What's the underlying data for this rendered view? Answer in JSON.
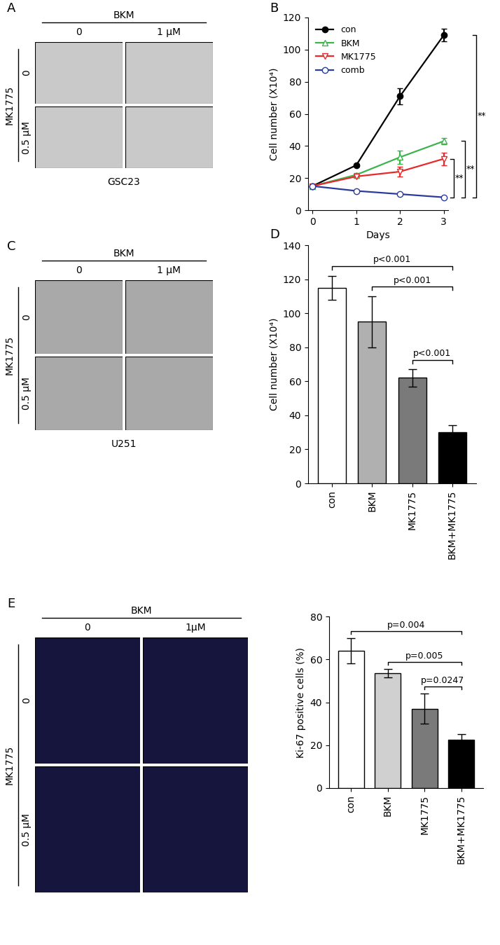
{
  "chart_data": [
    {
      "type": "line",
      "panel_label": "B",
      "x_label": "Days",
      "y_label": "Cell number (X10⁴)",
      "x": [
        0,
        1,
        2,
        3
      ],
      "xlim": [
        -0.1,
        3.1
      ],
      "xticks": [
        0,
        1,
        2,
        3
      ],
      "ylim": [
        0,
        120
      ],
      "yticks": [
        0,
        20,
        40,
        60,
        80,
        100,
        120
      ],
      "legend": "upper left",
      "series": [
        {
          "name": "con",
          "color": "#000000",
          "marker": "circle_filled",
          "values": [
            15,
            28,
            71,
            109
          ],
          "errors": [
            0,
            1,
            5,
            4
          ]
        },
        {
          "name": "BKM",
          "color": "#3cb44b",
          "marker": "triangle_up",
          "values": [
            15,
            22,
            33,
            43
          ],
          "errors": [
            0,
            1,
            4,
            2
          ]
        },
        {
          "name": "MK1775",
          "color": "#e8282b",
          "marker": "triangle_down",
          "values": [
            15,
            21,
            24,
            32
          ],
          "errors": [
            0,
            1,
            3,
            4
          ]
        },
        {
          "name": "comb",
          "color": "#2a3b9a",
          "marker": "circle",
          "values": [
            15,
            12,
            10,
            8
          ],
          "errors": [
            0,
            0.5,
            0.5,
            0.5
          ]
        }
      ],
      "annotations": [
        {
          "from": "con",
          "to": "comb",
          "label": "**"
        },
        {
          "from": "BKM",
          "to": "comb",
          "label": "**"
        },
        {
          "from": "MK1775",
          "to": "comb",
          "label": "**"
        }
      ]
    },
    {
      "type": "bar",
      "panel_label": "D",
      "y_label": "Cell number (X10⁴)",
      "categories": [
        "con",
        "BKM",
        "MK1775",
        "BKM+MK1775"
      ],
      "values": [
        115,
        95,
        62,
        30
      ],
      "errors": [
        7,
        15,
        5,
        4
      ],
      "colors": [
        "#ffffff",
        "#b0b0b0",
        "#7a7a7a",
        "#000000"
      ],
      "ylim": [
        0,
        140
      ],
      "yticks": [
        0,
        20,
        40,
        60,
        80,
        100,
        120,
        140
      ],
      "annotations": [
        {
          "from": "con",
          "to": "BKM+MK1775",
          "label": "p<0.001"
        },
        {
          "from": "BKM",
          "to": "BKM+MK1775",
          "label": "p<0.001"
        },
        {
          "from": "MK1775",
          "to": "BKM+MK1775",
          "label": "p<0.001"
        }
      ]
    },
    {
      "type": "bar",
      "y_label": "Ki-67 positive cells (%)",
      "categories": [
        "con",
        "BKM",
        "MK1775",
        "BKM+MK1775"
      ],
      "values": [
        64,
        53.5,
        37,
        22.5
      ],
      "errors": [
        6,
        2,
        7,
        2.5
      ],
      "colors": [
        "#ffffff",
        "#d0d0d0",
        "#7a7a7a",
        "#000000"
      ],
      "ylim": [
        0,
        80
      ],
      "yticks": [
        0,
        20,
        40,
        60,
        80
      ],
      "annotations": [
        {
          "from": "con",
          "to": "BKM+MK1775",
          "label": "p=0.004"
        },
        {
          "from": "BKM",
          "to": "BKM+MK1775",
          "label": "p=0.005"
        },
        {
          "from": "MK1775",
          "to": "BKM+MK1775",
          "label": "p=0.0247"
        }
      ]
    }
  ],
  "image_panels": [
    {
      "panel_label": "A",
      "top_label": "BKM",
      "column_labels": [
        "0",
        "1 μM"
      ],
      "side_label": "MK1775",
      "row_labels": [
        "0",
        "0.5 μM"
      ],
      "caption": "GSC23"
    },
    {
      "panel_label": "C",
      "top_label": "BKM",
      "column_labels": [
        "0",
        "1 μM"
      ],
      "side_label": "MK1775",
      "row_labels": [
        "0",
        "0.5 μM"
      ],
      "caption": "U251"
    },
    {
      "panel_label": "E",
      "top_label": "BKM",
      "column_labels": [
        "0",
        "1μM"
      ],
      "side_label": "MK1775",
      "row_labels": [
        "0",
        "0.5 μM"
      ]
    }
  ]
}
